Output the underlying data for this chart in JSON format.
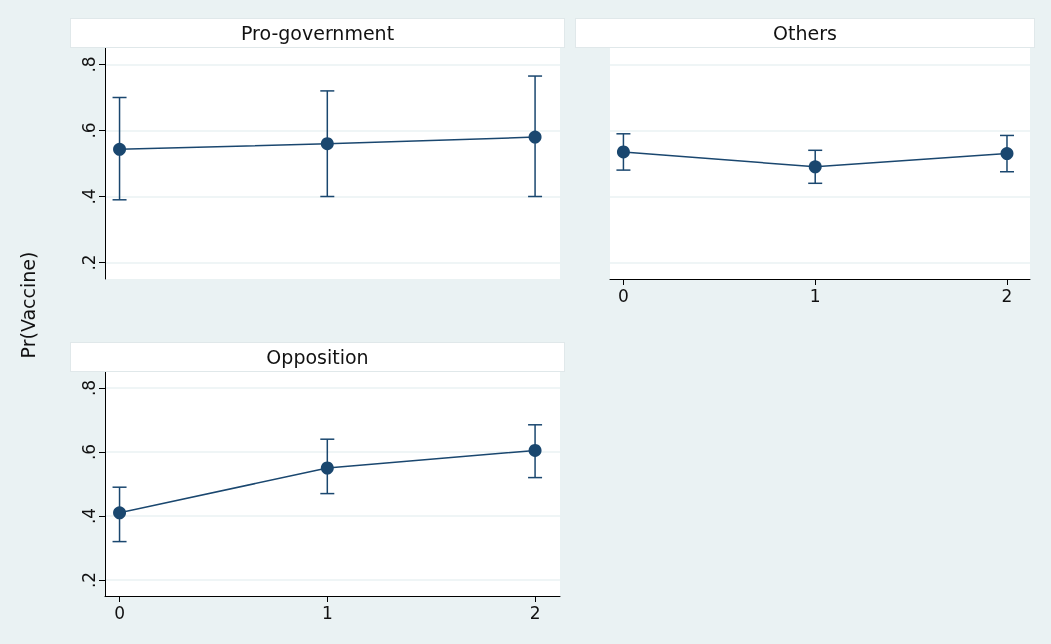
{
  "chart_data": [
    {
      "type": "line",
      "title": "Pro-government",
      "ylabel": "Pr(Vaccine)",
      "x": [
        0,
        1,
        2
      ],
      "xlim": [
        -0.07,
        2.12
      ],
      "xticks": [
        0,
        1,
        2
      ],
      "ylim": [
        0.15,
        0.85
      ],
      "yticks": [
        {
          "value": 0.2,
          "label": ".2"
        },
        {
          "value": 0.4,
          "label": ".4"
        },
        {
          "value": 0.6,
          "label": ".6"
        },
        {
          "value": 0.8,
          "label": ".8"
        }
      ],
      "tick_labels": "y",
      "grid": "y",
      "marker": "circle",
      "line_style": "solid",
      "series": [
        {
          "color": "#1a476f",
          "values": [
            0.543,
            0.56,
            0.58
          ],
          "errors": [
            [
              0.39,
              0.7
            ],
            [
              0.4,
              0.72
            ],
            [
              0.4,
              0.765
            ]
          ]
        }
      ]
    },
    {
      "type": "line",
      "title": "Others",
      "x": [
        0,
        1,
        2
      ],
      "xlim": [
        -0.07,
        2.12
      ],
      "xticks": [
        0,
        1,
        2
      ],
      "ylim": [
        0.15,
        0.85
      ],
      "yticks": [
        0.2,
        0.4,
        0.6,
        0.8
      ],
      "tick_labels": "x",
      "grid": "y",
      "marker": "circle",
      "line_style": "solid",
      "series": [
        {
          "color": "#1a476f",
          "values": [
            0.535,
            0.49,
            0.53
          ],
          "errors": [
            [
              0.48,
              0.59
            ],
            [
              0.44,
              0.54
            ],
            [
              0.475,
              0.585
            ]
          ]
        }
      ]
    },
    {
      "type": "line",
      "title": "Opposition",
      "x": [
        0,
        1,
        2
      ],
      "xlim": [
        -0.07,
        2.12
      ],
      "xticks": [
        0,
        1,
        2
      ],
      "ylim": [
        0.15,
        0.85
      ],
      "yticks": [
        {
          "value": 0.2,
          "label": ".2"
        },
        {
          "value": 0.4,
          "label": ".4"
        },
        {
          "value": 0.6,
          "label": ".6"
        },
        {
          "value": 0.8,
          "label": ".8"
        }
      ],
      "grid": "y",
      "marker": "circle",
      "line_style": "solid",
      "series": [
        {
          "color": "#1a476f",
          "values": [
            0.41,
            0.55,
            0.605
          ],
          "errors": [
            [
              0.32,
              0.49
            ],
            [
              0.47,
              0.64
            ],
            [
              0.52,
              0.685
            ]
          ]
        }
      ]
    }
  ]
}
